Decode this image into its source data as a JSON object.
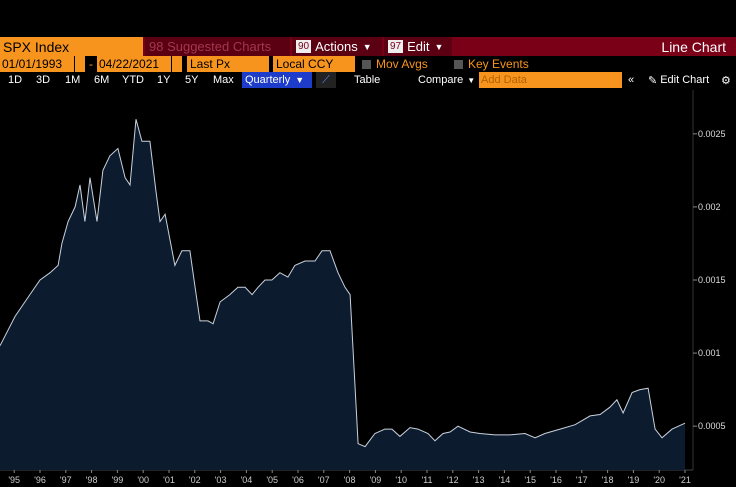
{
  "toolbar": {
    "ticker": "SPX Index",
    "suggested": "98 Suggested Charts",
    "actions_num": "90",
    "actions": "Actions",
    "edit_num": "97",
    "edit": "Edit",
    "chart_kind": "Line Chart",
    "start_date": "01/01/1993",
    "date_sep": "-",
    "end_date": "04/22/2021",
    "field": "Last Px",
    "currency": "Local CCY",
    "mov_avgs": "Mov Avgs",
    "key_events": "Key Events",
    "periods": [
      "1D",
      "3D",
      "1M",
      "6M",
      "YTD",
      "1Y",
      "5Y",
      "Max"
    ],
    "frequency": "Quarterly",
    "table": "Table",
    "compare": "Compare",
    "add_data": "Add Data",
    "edit_chart": "Edit Chart"
  },
  "chart_data": {
    "type": "area",
    "line_color": "#c9d2de",
    "fill_color": "#0d1b2e",
    "x": [
      1994.45,
      1995.03,
      1995.61,
      1996.0,
      1996.39,
      1996.7,
      1996.85,
      1997.09,
      1997.36,
      1997.55,
      1997.74,
      1997.94,
      1998.21,
      1998.44,
      1998.71,
      1999.02,
      1999.3,
      1999.49,
      1999.72,
      1999.95,
      2000.26,
      2000.5,
      2000.65,
      2000.85,
      2001.23,
      2001.5,
      2001.81,
      2002.01,
      2002.2,
      2002.51,
      2002.71,
      2002.98,
      2003.36,
      2003.67,
      2003.95,
      2004.22,
      2004.45,
      2004.72,
      2004.99,
      2005.3,
      2005.61,
      2005.88,
      2006.27,
      2006.66,
      2006.93,
      2007.24,
      2007.55,
      2007.82,
      2008.02,
      2008.33,
      2008.6,
      2008.98,
      2009.37,
      2009.64,
      2009.95,
      2010.34,
      2010.65,
      2011.04,
      2011.31,
      2011.62,
      2011.89,
      2012.2,
      2012.67,
      2013.05,
      2013.64,
      2014.22,
      2014.8,
      2015.19,
      2015.57,
      2016.16,
      2016.74,
      2017.32,
      2017.71,
      2018.09,
      2018.36,
      2018.6,
      2018.95,
      2019.26,
      2019.57,
      2019.84,
      2020.11,
      2020.5,
      2021.0
    ],
    "values": [
      0.00105,
      0.00125,
      0.0014,
      0.0015,
      0.00155,
      0.0016,
      0.00175,
      0.0019,
      0.002,
      0.00215,
      0.0019,
      0.0022,
      0.0019,
      0.00225,
      0.00235,
      0.0024,
      0.0022,
      0.00215,
      0.0026,
      0.00245,
      0.00245,
      0.0021,
      0.0019,
      0.00195,
      0.0016,
      0.0017,
      0.0017,
      0.00145,
      0.00122,
      0.00122,
      0.0012,
      0.00135,
      0.0014,
      0.00145,
      0.00145,
      0.0014,
      0.00145,
      0.0015,
      0.0015,
      0.00155,
      0.00152,
      0.0016,
      0.00163,
      0.00163,
      0.0017,
      0.0017,
      0.00155,
      0.00145,
      0.0014,
      0.00038,
      0.00036,
      0.00045,
      0.00048,
      0.00048,
      0.00043,
      0.00049,
      0.00048,
      0.00045,
      0.0004,
      0.00045,
      0.00046,
      0.0005,
      0.00046,
      0.00045,
      0.00044,
      0.00044,
      0.00045,
      0.00042,
      0.00045,
      0.00048,
      0.00051,
      0.00057,
      0.00058,
      0.00063,
      0.00068,
      0.00059,
      0.00073,
      0.00075,
      0.00076,
      0.00048,
      0.00042,
      0.00048,
      0.00052
    ],
    "xlim": [
      1994.45,
      2021.31
    ],
    "ylim": [
      0.0002,
      0.0028
    ],
    "yticks": [
      0.0005,
      0.001,
      0.0015,
      0.002,
      0.0025
    ],
    "xticks": [
      {
        "value": 1995,
        "label": "'95"
      },
      {
        "value": 1996,
        "label": "'96"
      },
      {
        "value": 1997,
        "label": "'97"
      },
      {
        "value": 1998,
        "label": "'98"
      },
      {
        "value": 1999,
        "label": "'99"
      },
      {
        "value": 2000,
        "label": "'00"
      },
      {
        "value": 2001,
        "label": "'01"
      },
      {
        "value": 2002,
        "label": "'02"
      },
      {
        "value": 2003,
        "label": "'03"
      },
      {
        "value": 2004,
        "label": "'04"
      },
      {
        "value": 2005,
        "label": "'05"
      },
      {
        "value": 2006,
        "label": "'06"
      },
      {
        "value": 2007,
        "label": "'07"
      },
      {
        "value": 2008,
        "label": "'08"
      },
      {
        "value": 2009,
        "label": "'09"
      },
      {
        "value": 2010,
        "label": "'10"
      },
      {
        "value": 2011,
        "label": "'11"
      },
      {
        "value": 2012,
        "label": "'12"
      },
      {
        "value": 2013,
        "label": "'13"
      },
      {
        "value": 2014,
        "label": "'14"
      },
      {
        "value": 2015,
        "label": "'15"
      },
      {
        "value": 2016,
        "label": "'16"
      },
      {
        "value": 2017,
        "label": "'17"
      },
      {
        "value": 2018,
        "label": "'18"
      },
      {
        "value": 2019,
        "label": "'19"
      },
      {
        "value": 2020,
        "label": "'20"
      },
      {
        "value": 2021,
        "label": "'21"
      }
    ]
  }
}
